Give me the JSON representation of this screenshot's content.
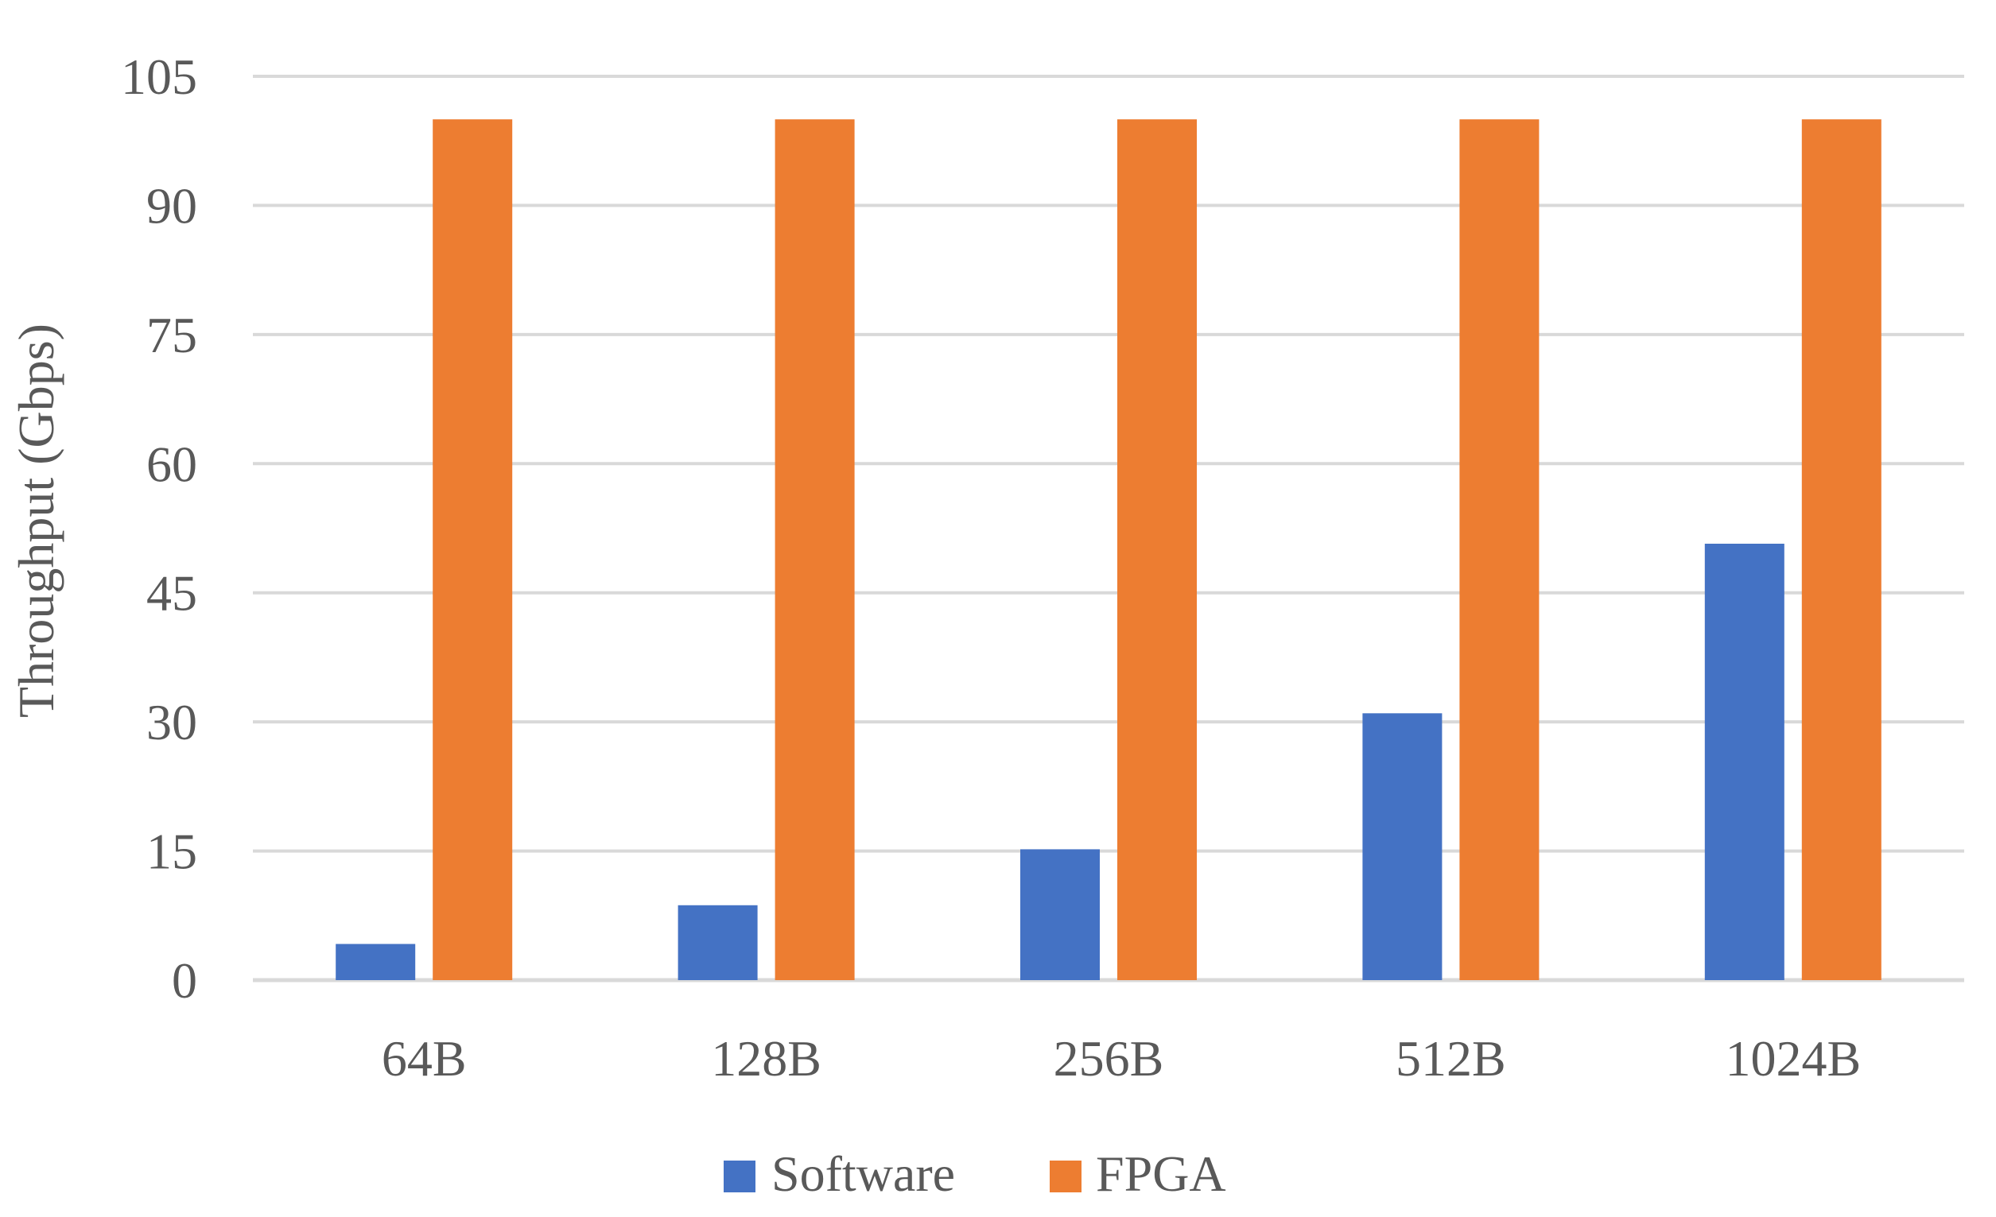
{
  "chart_data": {
    "type": "bar",
    "title": "",
    "xlabel": "",
    "ylabel": "Throughput (Gbps)",
    "categories": [
      "64B",
      "128B",
      "256B",
      "512B",
      "1024B"
    ],
    "series": [
      {
        "name": "Software",
        "color": "#4472C4",
        "values": [
          4.2,
          8.7,
          15.2,
          31.0,
          50.7
        ]
      },
      {
        "name": "FPGA",
        "color": "#ED7D31",
        "values": [
          100,
          100,
          100,
          100,
          100
        ]
      }
    ],
    "ylim": [
      0,
      105
    ],
    "yticks": [
      "0",
      "15",
      "30",
      "45",
      "60",
      "75",
      "90",
      "105"
    ],
    "grid": true,
    "legend": "bottom-center"
  }
}
